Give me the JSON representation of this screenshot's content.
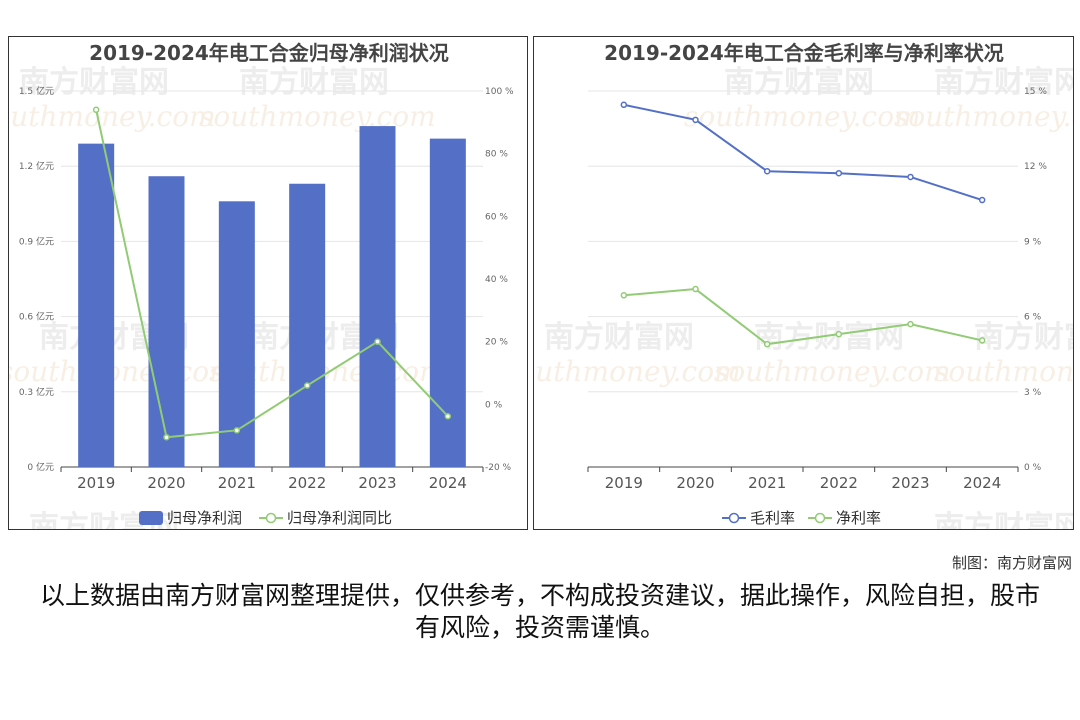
{
  "colors": {
    "bar": "#5470c6",
    "line_green": "#91cc75",
    "line_blue": "#5470c6",
    "axis": "#444444",
    "grid": "#e6e6e6",
    "title": "#444444",
    "watermark": "#e0e0e0"
  },
  "watermark": {
    "text_cn": "南方财富网",
    "text_en": "southmoney.com"
  },
  "footer": {
    "credit": "制图：南方财富网",
    "disclaimer": "以上数据由南方财富网整理提供，仅供参考，不构成投资建议，据此操作，风险自担，股市有风险，投资需谨慎。"
  },
  "chart_data": [
    {
      "type": "bar",
      "title": "2019-2024年电工合金归母净利润状况",
      "categories": [
        "2019",
        "2020",
        "2021",
        "2022",
        "2023",
        "2024"
      ],
      "y_left": {
        "ticks": [
          "0 亿元",
          "0.3 亿元",
          "0.6 亿元",
          "0.9 亿元",
          "1.2 亿元",
          "1.5 亿元"
        ],
        "ylim": [
          0,
          1.5
        ]
      },
      "y_right": {
        "ticks": [
          "-20 %",
          "0 %",
          "20 %",
          "40 %",
          "60 %",
          "80 %",
          "100 %"
        ],
        "ylim": [
          -20,
          100
        ]
      },
      "series": [
        {
          "name": "归母净利润",
          "type": "bar",
          "axis": "left",
          "values": [
            1.29,
            1.16,
            1.06,
            1.13,
            1.36,
            1.31
          ]
        },
        {
          "name": "归母净利润同比",
          "type": "line",
          "axis": "right",
          "values": [
            94,
            -10.5,
            -8.3,
            6,
            20.0,
            -3.8
          ]
        }
      ],
      "legend": "bottom-center",
      "grid": true
    },
    {
      "type": "line",
      "title": "2019-2024年电工合金毛利率与净利率状况",
      "categories": [
        "2019",
        "2020",
        "2021",
        "2022",
        "2023",
        "2024"
      ],
      "y_right": {
        "ticks": [
          "0 %",
          "3 %",
          "6 %",
          "9 %",
          "12 %",
          "15 %"
        ],
        "ylim": [
          0,
          15
        ]
      },
      "series": [
        {
          "name": "毛利率",
          "values": [
            14.45,
            13.85,
            11.8,
            11.72,
            11.57,
            10.65
          ]
        },
        {
          "name": "净利率",
          "values": [
            6.85,
            7.1,
            4.9,
            5.3,
            5.7,
            5.05
          ]
        }
      ],
      "legend": "bottom-center",
      "grid": true
    }
  ]
}
